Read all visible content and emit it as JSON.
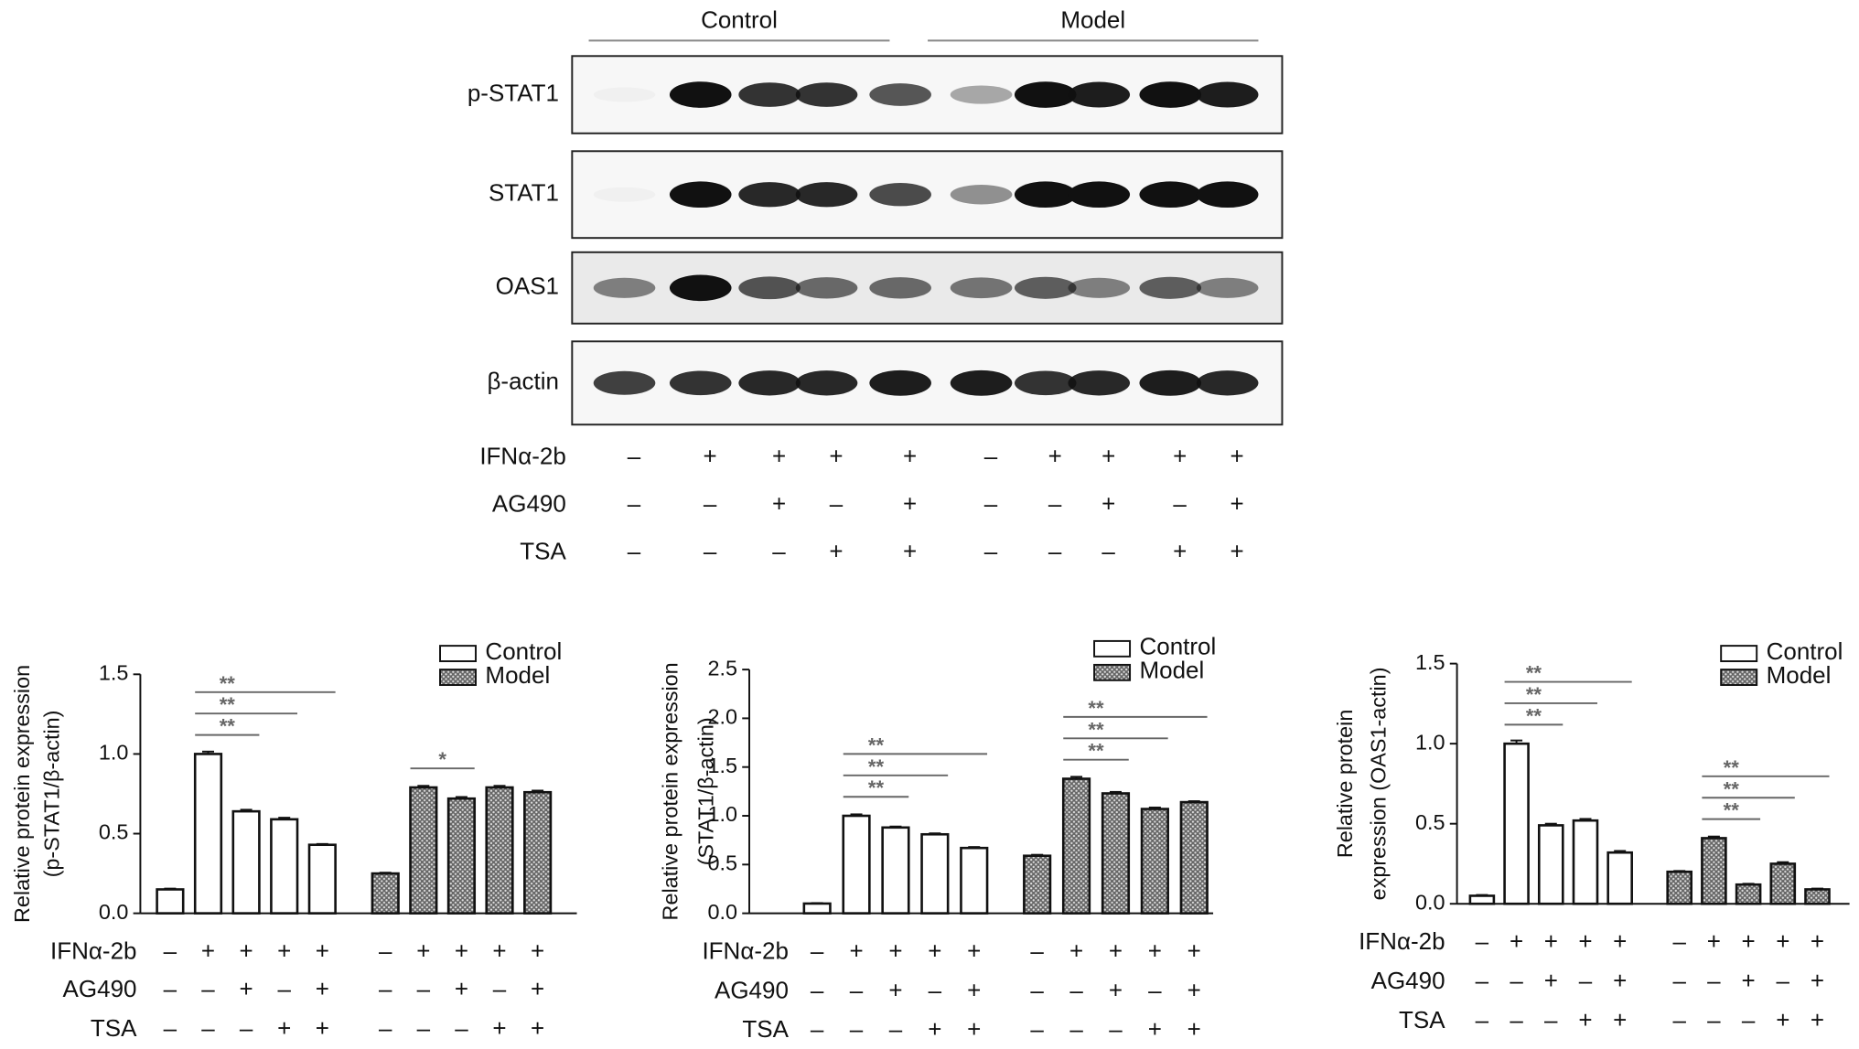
{
  "blot": {
    "groups": [
      "Control",
      "Model"
    ],
    "rows": [
      "p-STAT1",
      "STAT1",
      "OAS1",
      "β-actin"
    ]
  },
  "treatments": [
    {
      "label": "IFNα-2b",
      "signs": [
        "–",
        "+",
        "+",
        "+",
        "+",
        "–",
        "+",
        "+",
        "+",
        "+"
      ]
    },
    {
      "label": "AG490",
      "signs": [
        "–",
        "–",
        "+",
        "–",
        "+",
        "–",
        "–",
        "+",
        "–",
        "+"
      ]
    },
    {
      "label": "TSA",
      "signs": [
        "–",
        "–",
        "–",
        "+",
        "+",
        "–",
        "–",
        "–",
        "+",
        "+"
      ]
    }
  ],
  "chart_data": [
    {
      "type": "bar",
      "ylabel": [
        "Relative protein expression",
        "(p-STAT1/β-actin)"
      ],
      "ylim": [
        0,
        1.5
      ],
      "yticks": [
        {
          "value": 0,
          "label": "0.0"
        },
        {
          "value": 0.5,
          "label": "0.5"
        },
        {
          "value": 1,
          "label": "1.0"
        },
        {
          "value": 1.5,
          "label": "1.5"
        }
      ],
      "series": [
        {
          "name": "Control",
          "color": "#ffffff",
          "values": [
            0.15,
            1.0,
            0.64,
            0.59,
            0.43
          ],
          "errors": [
            0.005,
            0.015,
            0.01,
            0.01,
            0.005
          ]
        },
        {
          "name": "Model",
          "color": "#666666",
          "values": [
            0.25,
            0.79,
            0.72,
            0.79,
            0.76
          ],
          "errors": [
            0.005,
            0.01,
            0.01,
            0.01,
            0.01
          ]
        }
      ],
      "annotations": [
        {
          "series": 0,
          "from": 1,
          "to": 2,
          "label": "**"
        },
        {
          "series": 0,
          "from": 1,
          "to": 3,
          "label": "**"
        },
        {
          "series": 0,
          "from": 1,
          "to": 4,
          "label": "**"
        },
        {
          "series": 1,
          "from": 1,
          "to": 2,
          "label": "*"
        }
      ]
    },
    {
      "type": "bar",
      "ylabel": [
        "Relative protein expression",
        "(STAT1/β-actin)"
      ],
      "ylim": [
        0,
        2.5
      ],
      "yticks": [
        {
          "value": 0,
          "label": "0.0"
        },
        {
          "value": 0.5,
          "label": "0.5"
        },
        {
          "value": 1,
          "label": "1.0"
        },
        {
          "value": 1.5,
          "label": "1.5"
        },
        {
          "value": 2,
          "label": "2.0"
        },
        {
          "value": 2.5,
          "label": "2.5"
        }
      ],
      "series": [
        {
          "name": "Control",
          "color": "#ffffff",
          "values": [
            0.1,
            1.0,
            0.88,
            0.81,
            0.67
          ],
          "errors": [
            0.005,
            0.015,
            0.01,
            0.01,
            0.01
          ]
        },
        {
          "name": "Model",
          "color": "#666666",
          "values": [
            0.59,
            1.38,
            1.23,
            1.07,
            1.14
          ],
          "errors": [
            0.01,
            0.02,
            0.015,
            0.015,
            0.01
          ]
        }
      ],
      "annotations": [
        {
          "series": 0,
          "from": 1,
          "to": 2,
          "label": "**"
        },
        {
          "series": 0,
          "from": 1,
          "to": 3,
          "label": "**"
        },
        {
          "series": 0,
          "from": 1,
          "to": 4,
          "label": "**"
        },
        {
          "series": 1,
          "from": 1,
          "to": 2,
          "label": "**"
        },
        {
          "series": 1,
          "from": 1,
          "to": 3,
          "label": "**"
        },
        {
          "series": 1,
          "from": 1,
          "to": 4,
          "label": "**"
        }
      ]
    },
    {
      "type": "bar",
      "ylabel": [
        "Relative protein",
        "expression (OAS1-actin)"
      ],
      "ylim": [
        0,
        1.5
      ],
      "yticks": [
        {
          "value": 0,
          "label": "0.0"
        },
        {
          "value": 0.5,
          "label": "0.5"
        },
        {
          "value": 1,
          "label": "1.0"
        },
        {
          "value": 1.5,
          "label": "1.5"
        }
      ],
      "series": [
        {
          "name": "Control",
          "color": "#ffffff",
          "values": [
            0.05,
            1.0,
            0.49,
            0.52,
            0.32
          ],
          "errors": [
            0.005,
            0.02,
            0.01,
            0.01,
            0.01
          ]
        },
        {
          "name": "Model",
          "color": "#666666",
          "values": [
            0.2,
            0.41,
            0.12,
            0.25,
            0.09
          ],
          "errors": [
            0.005,
            0.01,
            0.005,
            0.01,
            0.005
          ]
        }
      ],
      "annotations": [
        {
          "series": 0,
          "from": 1,
          "to": 2,
          "label": "**"
        },
        {
          "series": 0,
          "from": 1,
          "to": 3,
          "label": "**"
        },
        {
          "series": 0,
          "from": 1,
          "to": 4,
          "label": "**"
        },
        {
          "series": 1,
          "from": 1,
          "to": 2,
          "label": "**"
        },
        {
          "series": 1,
          "from": 1,
          "to": 3,
          "label": "**"
        },
        {
          "series": 1,
          "from": 1,
          "to": 4,
          "label": "**"
        }
      ]
    }
  ]
}
